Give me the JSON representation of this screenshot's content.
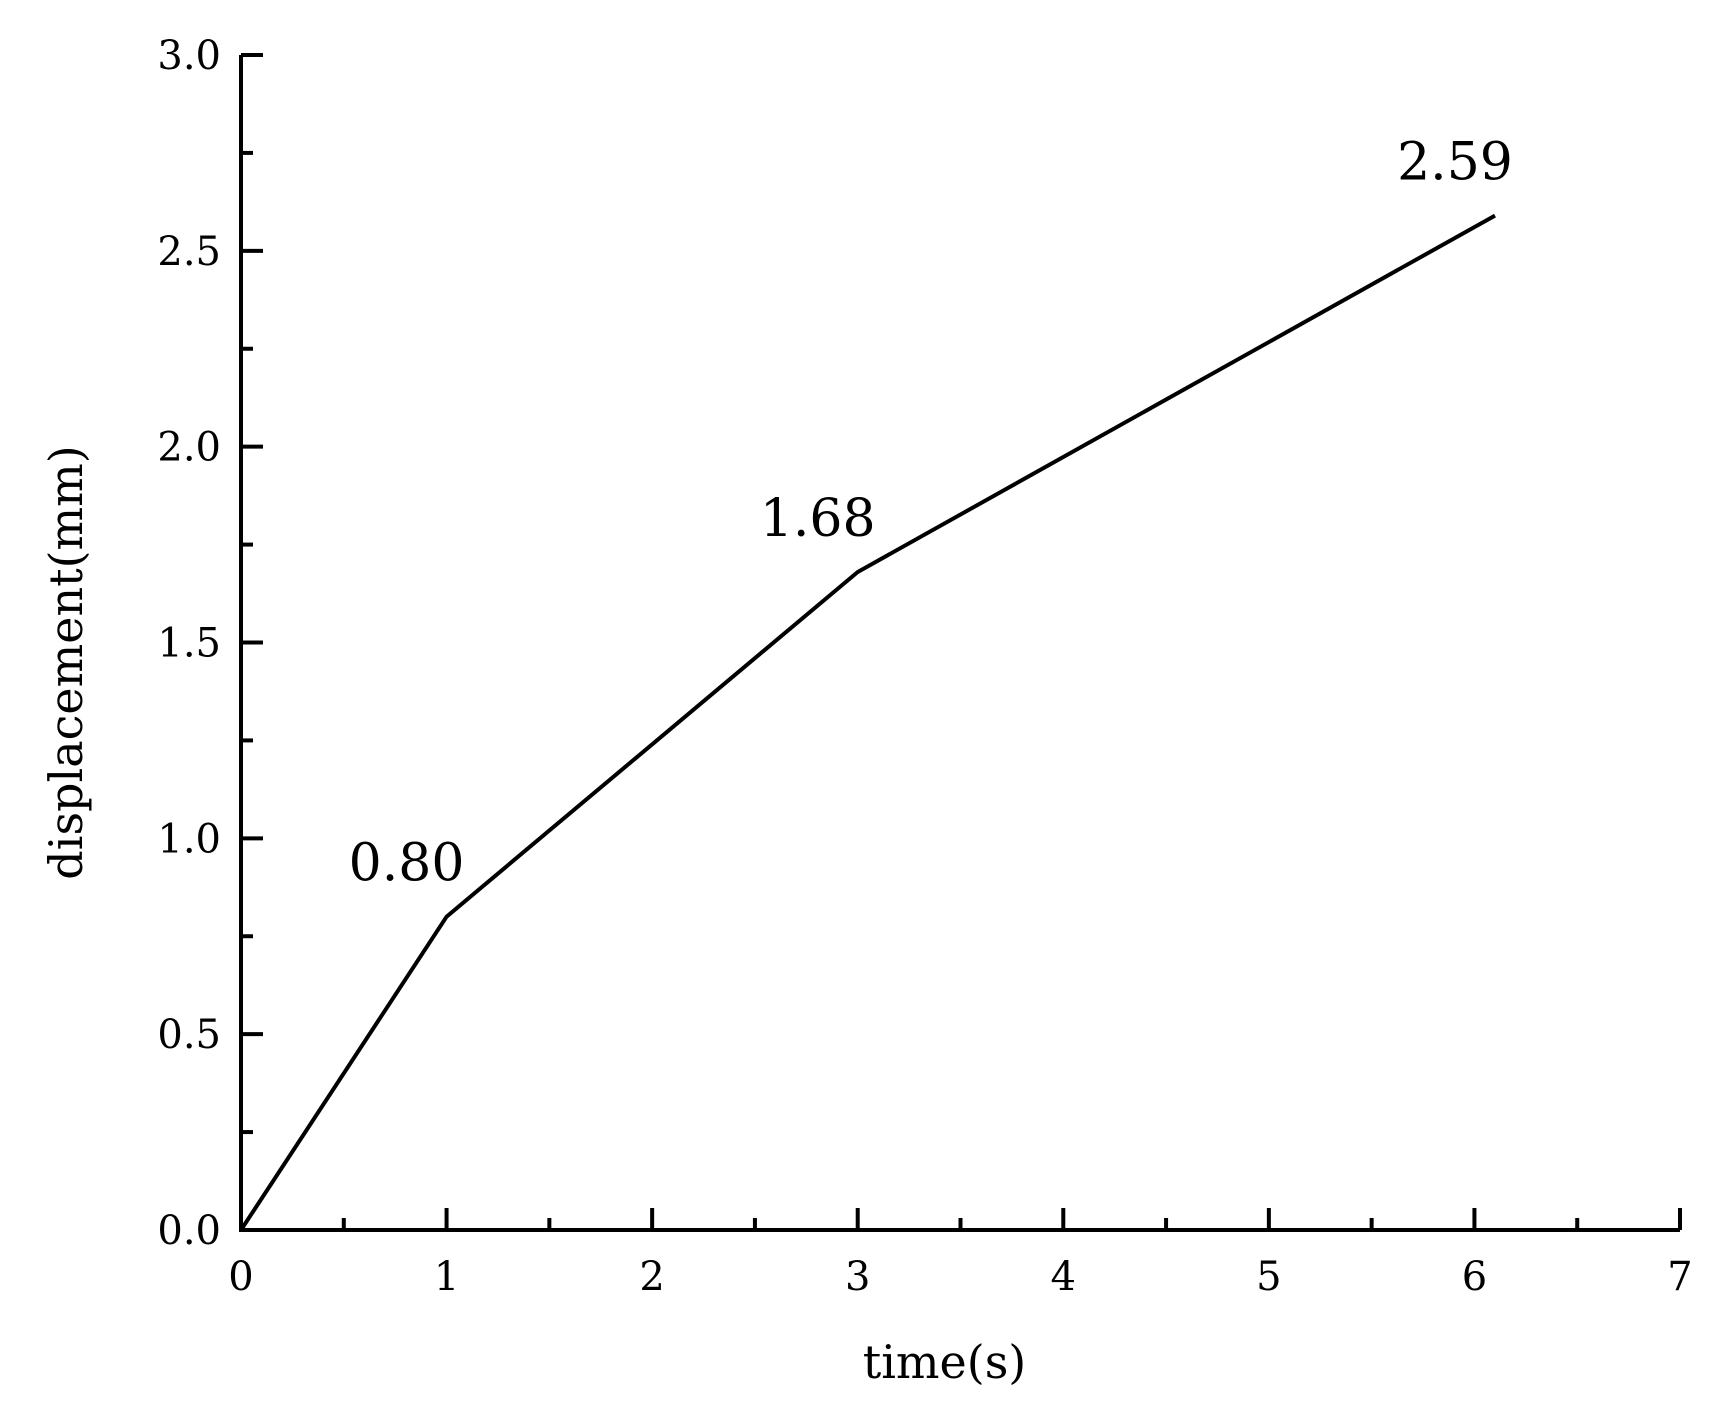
{
  "chart_data": {
    "type": "line",
    "title": "",
    "xlabel": "time(s)",
    "ylabel": "displacement(mm)",
    "xlim": [
      0,
      7
    ],
    "ylim": [
      0,
      3.0
    ],
    "x_ticks": [
      "0",
      "1",
      "2",
      "3",
      "4",
      "5",
      "6",
      "7"
    ],
    "y_ticks": [
      "0.0",
      "0.5",
      "1.0",
      "1.5",
      "2.0",
      "2.5",
      "3.0"
    ],
    "grid": false,
    "legend": "none",
    "series": [
      {
        "color": "#000000",
        "points": [
          {
            "x": 0,
            "y": 0
          },
          {
            "x": 1,
            "y": 0.8
          },
          {
            "x": 3,
            "y": 1.68
          },
          {
            "x": 6.1,
            "y": 2.59
          }
        ]
      }
    ],
    "annotations": [
      {
        "x": 1,
        "y": 0.8,
        "text": "0.80"
      },
      {
        "x": 3,
        "y": 1.68,
        "text": "1.68"
      },
      {
        "x": 6.1,
        "y": 2.59,
        "text": "2.59"
      }
    ]
  }
}
